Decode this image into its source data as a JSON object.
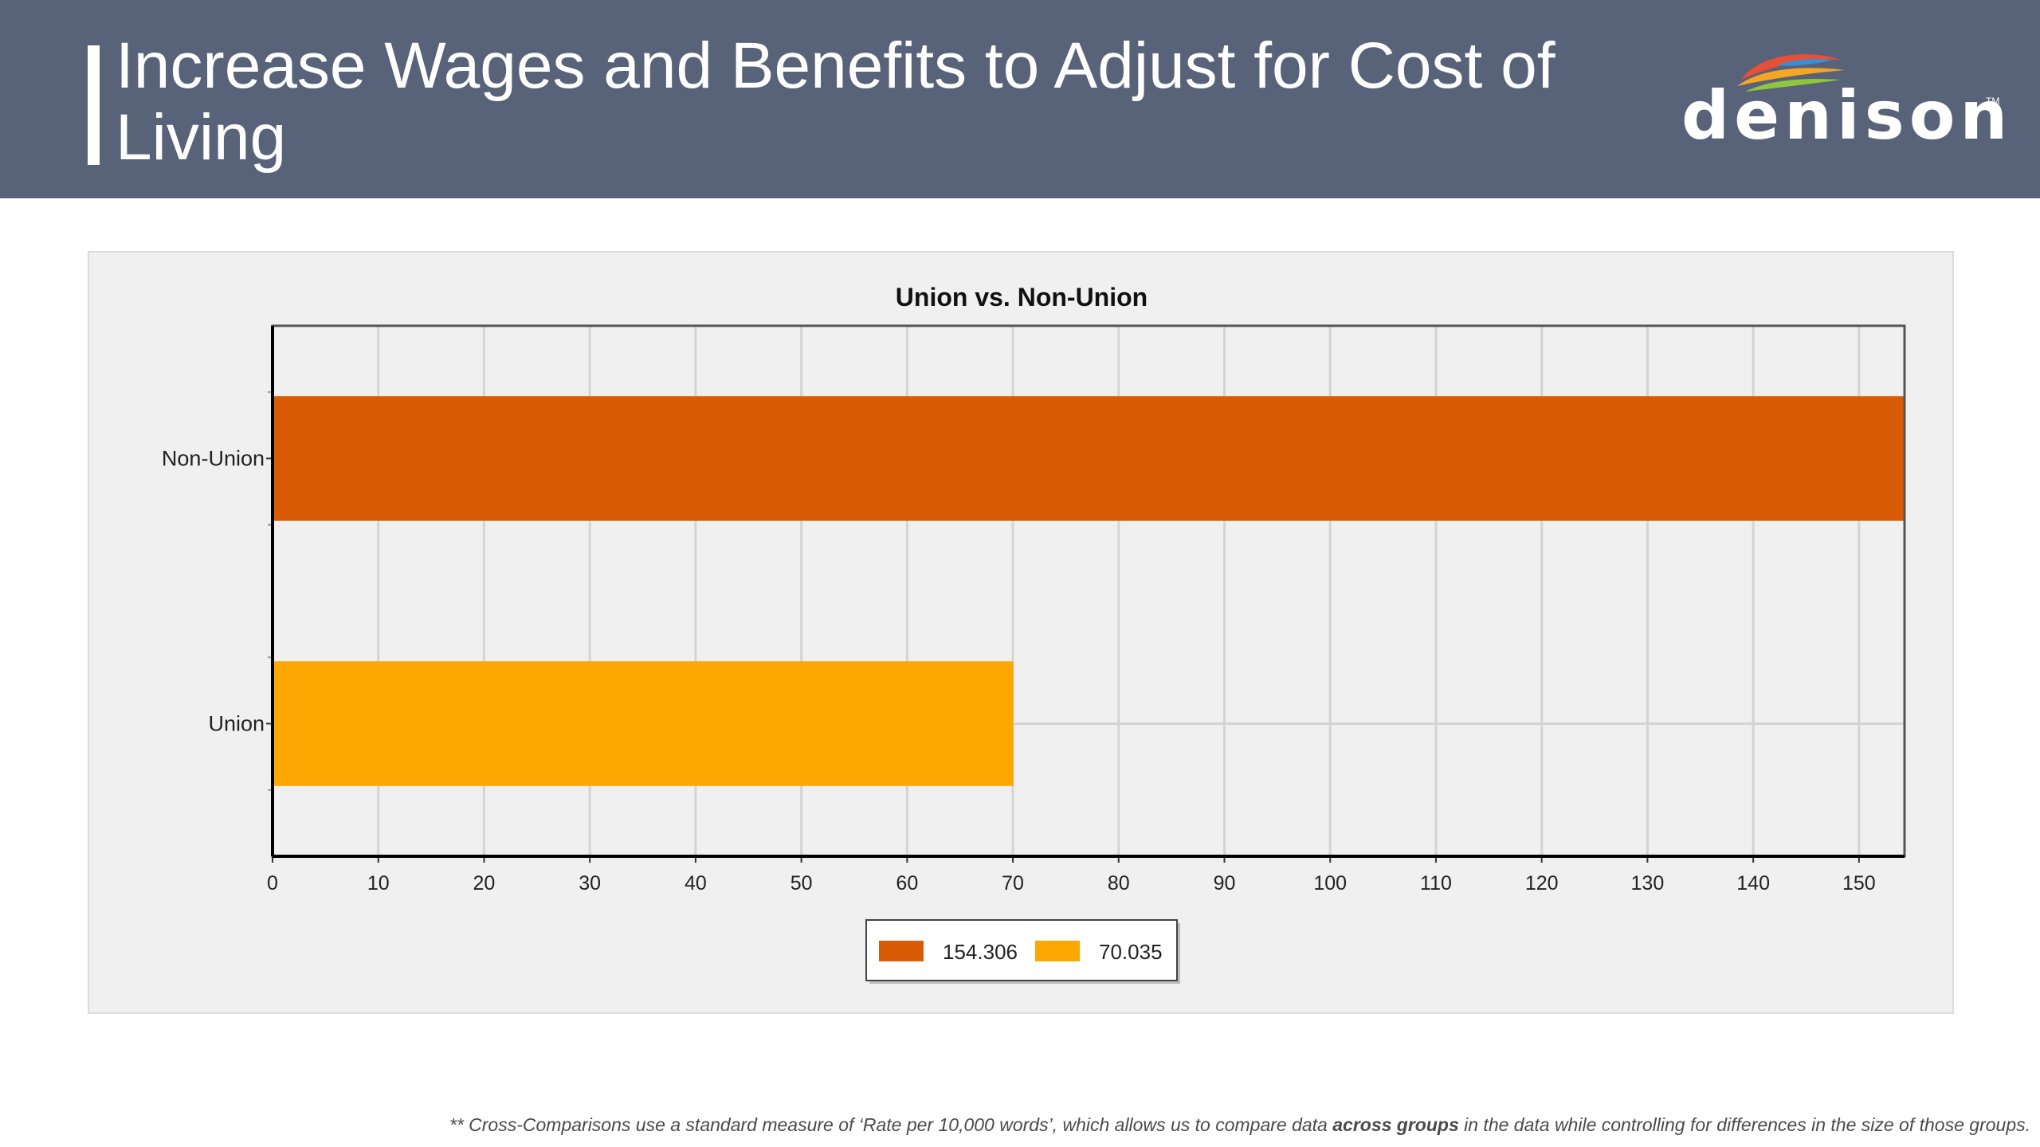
{
  "slide": {
    "title": "Increase Wages and Benefits to Adjust for Cost of Living",
    "logo_text": "denison",
    "logo_tm": "TM"
  },
  "footnote": {
    "part1": "** Cross-Comparisons use a standard measure of ‘Rate per 10,000 words’, which allows us to compare data ",
    "bold": "across groups",
    "part2": " in the data while controlling for differences in the size of those groups."
  },
  "chart_data": {
    "type": "bar",
    "orientation": "horizontal",
    "title": "Union vs. Non-Union",
    "categories": [
      "Non-Union",
      "Union"
    ],
    "values": [
      154.306,
      70.035
    ],
    "colors": [
      "#d95b05",
      "#fca702"
    ],
    "xlim": [
      0,
      154.306
    ],
    "xticks": [
      0,
      10,
      20,
      30,
      40,
      50,
      60,
      70,
      80,
      90,
      100,
      110,
      120,
      130,
      140,
      150
    ],
    "grid": true,
    "legend": {
      "position": "bottom-center",
      "entries": [
        {
          "label": "154.306",
          "color": "#d95b05"
        },
        {
          "label": "70.035",
          "color": "#fca702"
        }
      ]
    }
  },
  "colors": {
    "header_bg": "#586379",
    "panel_bg": "#f0f0f0"
  }
}
